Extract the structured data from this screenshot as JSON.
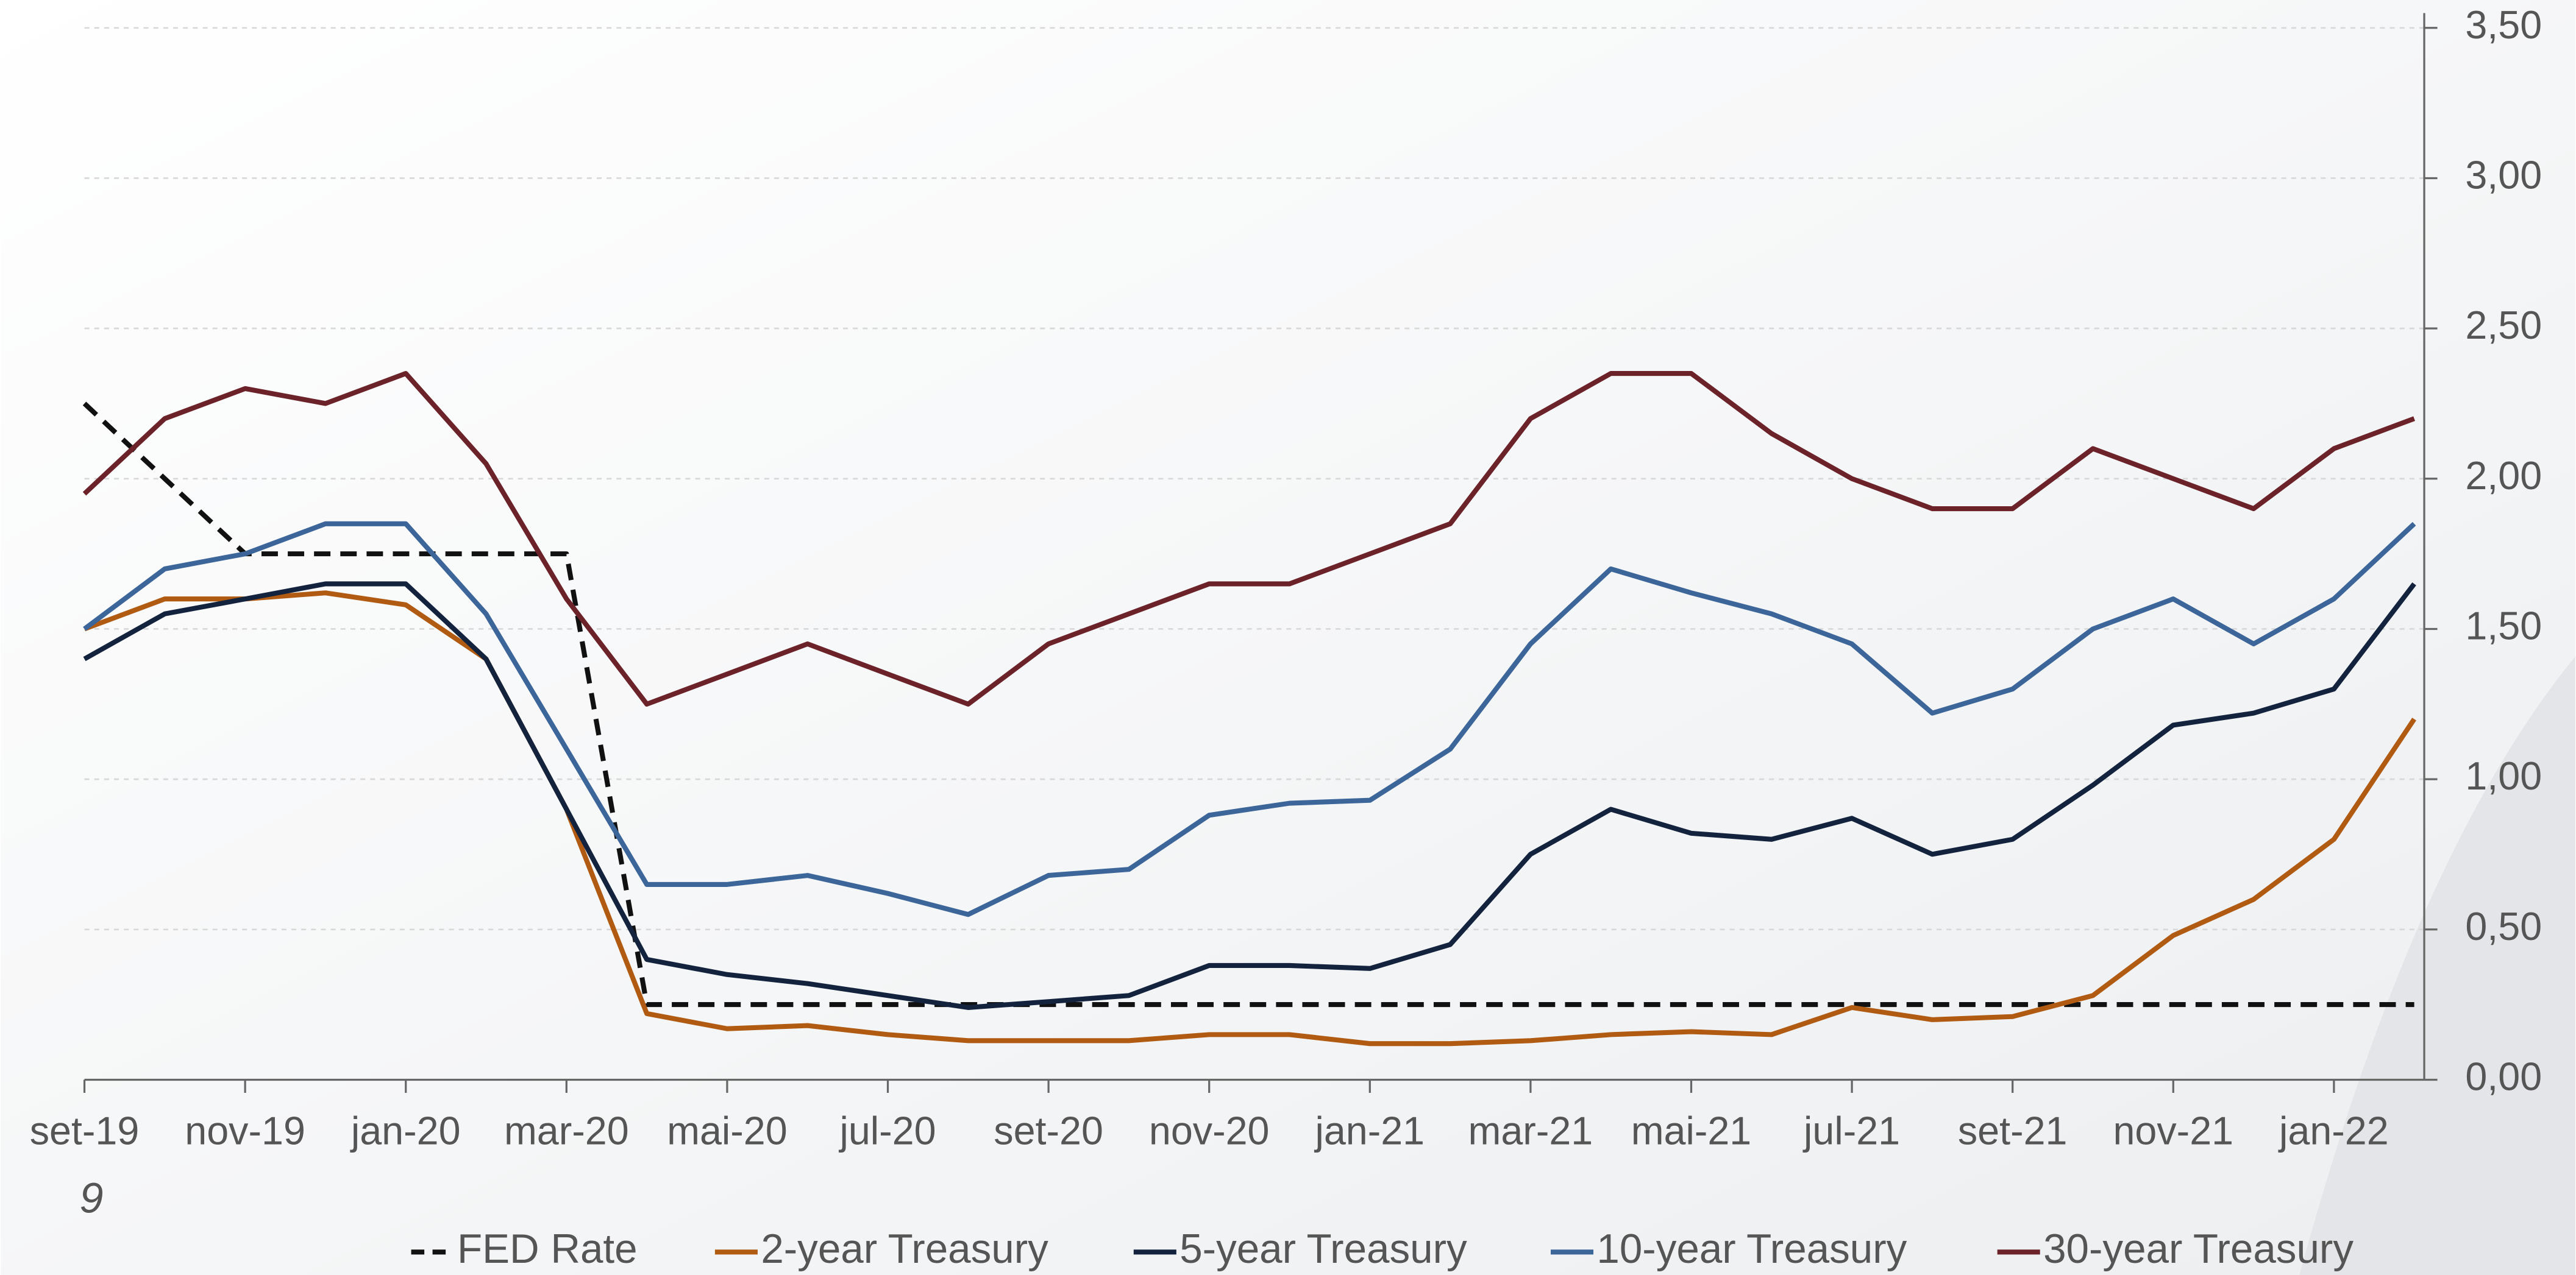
{
  "chart_data": {
    "type": "line",
    "categories": [
      "set-19",
      null,
      "nov-19",
      null,
      "jan-20",
      null,
      "mar-20",
      null,
      "mai-20",
      null,
      "jul-20",
      null,
      "set-20",
      null,
      "nov-20",
      null,
      "jan-21",
      null,
      "mar-21",
      null,
      "mai-21",
      null,
      "jul-21",
      null,
      "set-21",
      null,
      "nov-21",
      null,
      "jan-22",
      null
    ],
    "series": [
      {
        "name": "FED Rate",
        "color": "#111111",
        "dashed": true,
        "values": [
          2.25,
          2.0,
          1.75,
          1.75,
          1.75,
          1.75,
          1.75,
          0.25,
          0.25,
          0.25,
          0.25,
          0.25,
          0.25,
          0.25,
          0.25,
          0.25,
          0.25,
          0.25,
          0.25,
          0.25,
          0.25,
          0.25,
          0.25,
          0.25,
          0.25,
          0.25,
          0.25,
          0.25,
          0.25,
          0.25
        ]
      },
      {
        "name": "2-year Treasury",
        "color": "#b05a12",
        "values": [
          1.5,
          1.6,
          1.6,
          1.62,
          1.58,
          1.4,
          0.9,
          0.22,
          0.17,
          0.18,
          0.15,
          0.13,
          0.13,
          0.13,
          0.15,
          0.15,
          0.12,
          0.12,
          0.13,
          0.15,
          0.16,
          0.15,
          0.24,
          0.2,
          0.21,
          0.28,
          0.48,
          0.6,
          0.8,
          1.2
        ]
      },
      {
        "name": "5-year Treasury",
        "color": "#13233e",
        "values": [
          1.4,
          1.55,
          1.6,
          1.65,
          1.65,
          1.4,
          0.9,
          0.4,
          0.35,
          0.32,
          0.28,
          0.24,
          0.26,
          0.28,
          0.38,
          0.38,
          0.37,
          0.45,
          0.75,
          0.9,
          0.82,
          0.8,
          0.87,
          0.75,
          0.8,
          0.98,
          1.18,
          1.22,
          1.3,
          1.65
        ]
      },
      {
        "name": "10-year Treasury",
        "color": "#3c6599",
        "values": [
          1.5,
          1.7,
          1.75,
          1.85,
          1.85,
          1.55,
          1.1,
          0.65,
          0.65,
          0.68,
          0.62,
          0.55,
          0.68,
          0.7,
          0.88,
          0.92,
          0.93,
          1.1,
          1.45,
          1.7,
          1.62,
          1.55,
          1.45,
          1.22,
          1.3,
          1.5,
          1.6,
          1.45,
          1.6,
          1.85
        ]
      },
      {
        "name": "30-year Treasury",
        "color": "#6b2228",
        "values": [
          1.95,
          2.2,
          2.3,
          2.25,
          2.35,
          2.05,
          1.6,
          1.25,
          1.35,
          1.45,
          1.35,
          1.25,
          1.45,
          1.55,
          1.65,
          1.65,
          1.75,
          1.85,
          2.2,
          2.35,
          2.35,
          2.15,
          2.0,
          1.9,
          1.9,
          2.1,
          2.0,
          1.9,
          2.1,
          2.2
        ]
      }
    ],
    "ylim": [
      0,
      3.5
    ],
    "yticks": [
      {
        "value": 0,
        "label": "0,00"
      },
      {
        "value": 0.5,
        "label": "0,50"
      },
      {
        "value": 1,
        "label": "1,00"
      },
      {
        "value": 1.5,
        "label": "1,50"
      },
      {
        "value": 2,
        "label": "2,00"
      },
      {
        "value": 2.5,
        "label": "2,50"
      },
      {
        "value": 3,
        "label": "3,00"
      },
      {
        "value": 3.5,
        "label": "3,50"
      }
    ],
    "grid": true,
    "legend": "bottom",
    "annotations": [
      "9"
    ]
  }
}
